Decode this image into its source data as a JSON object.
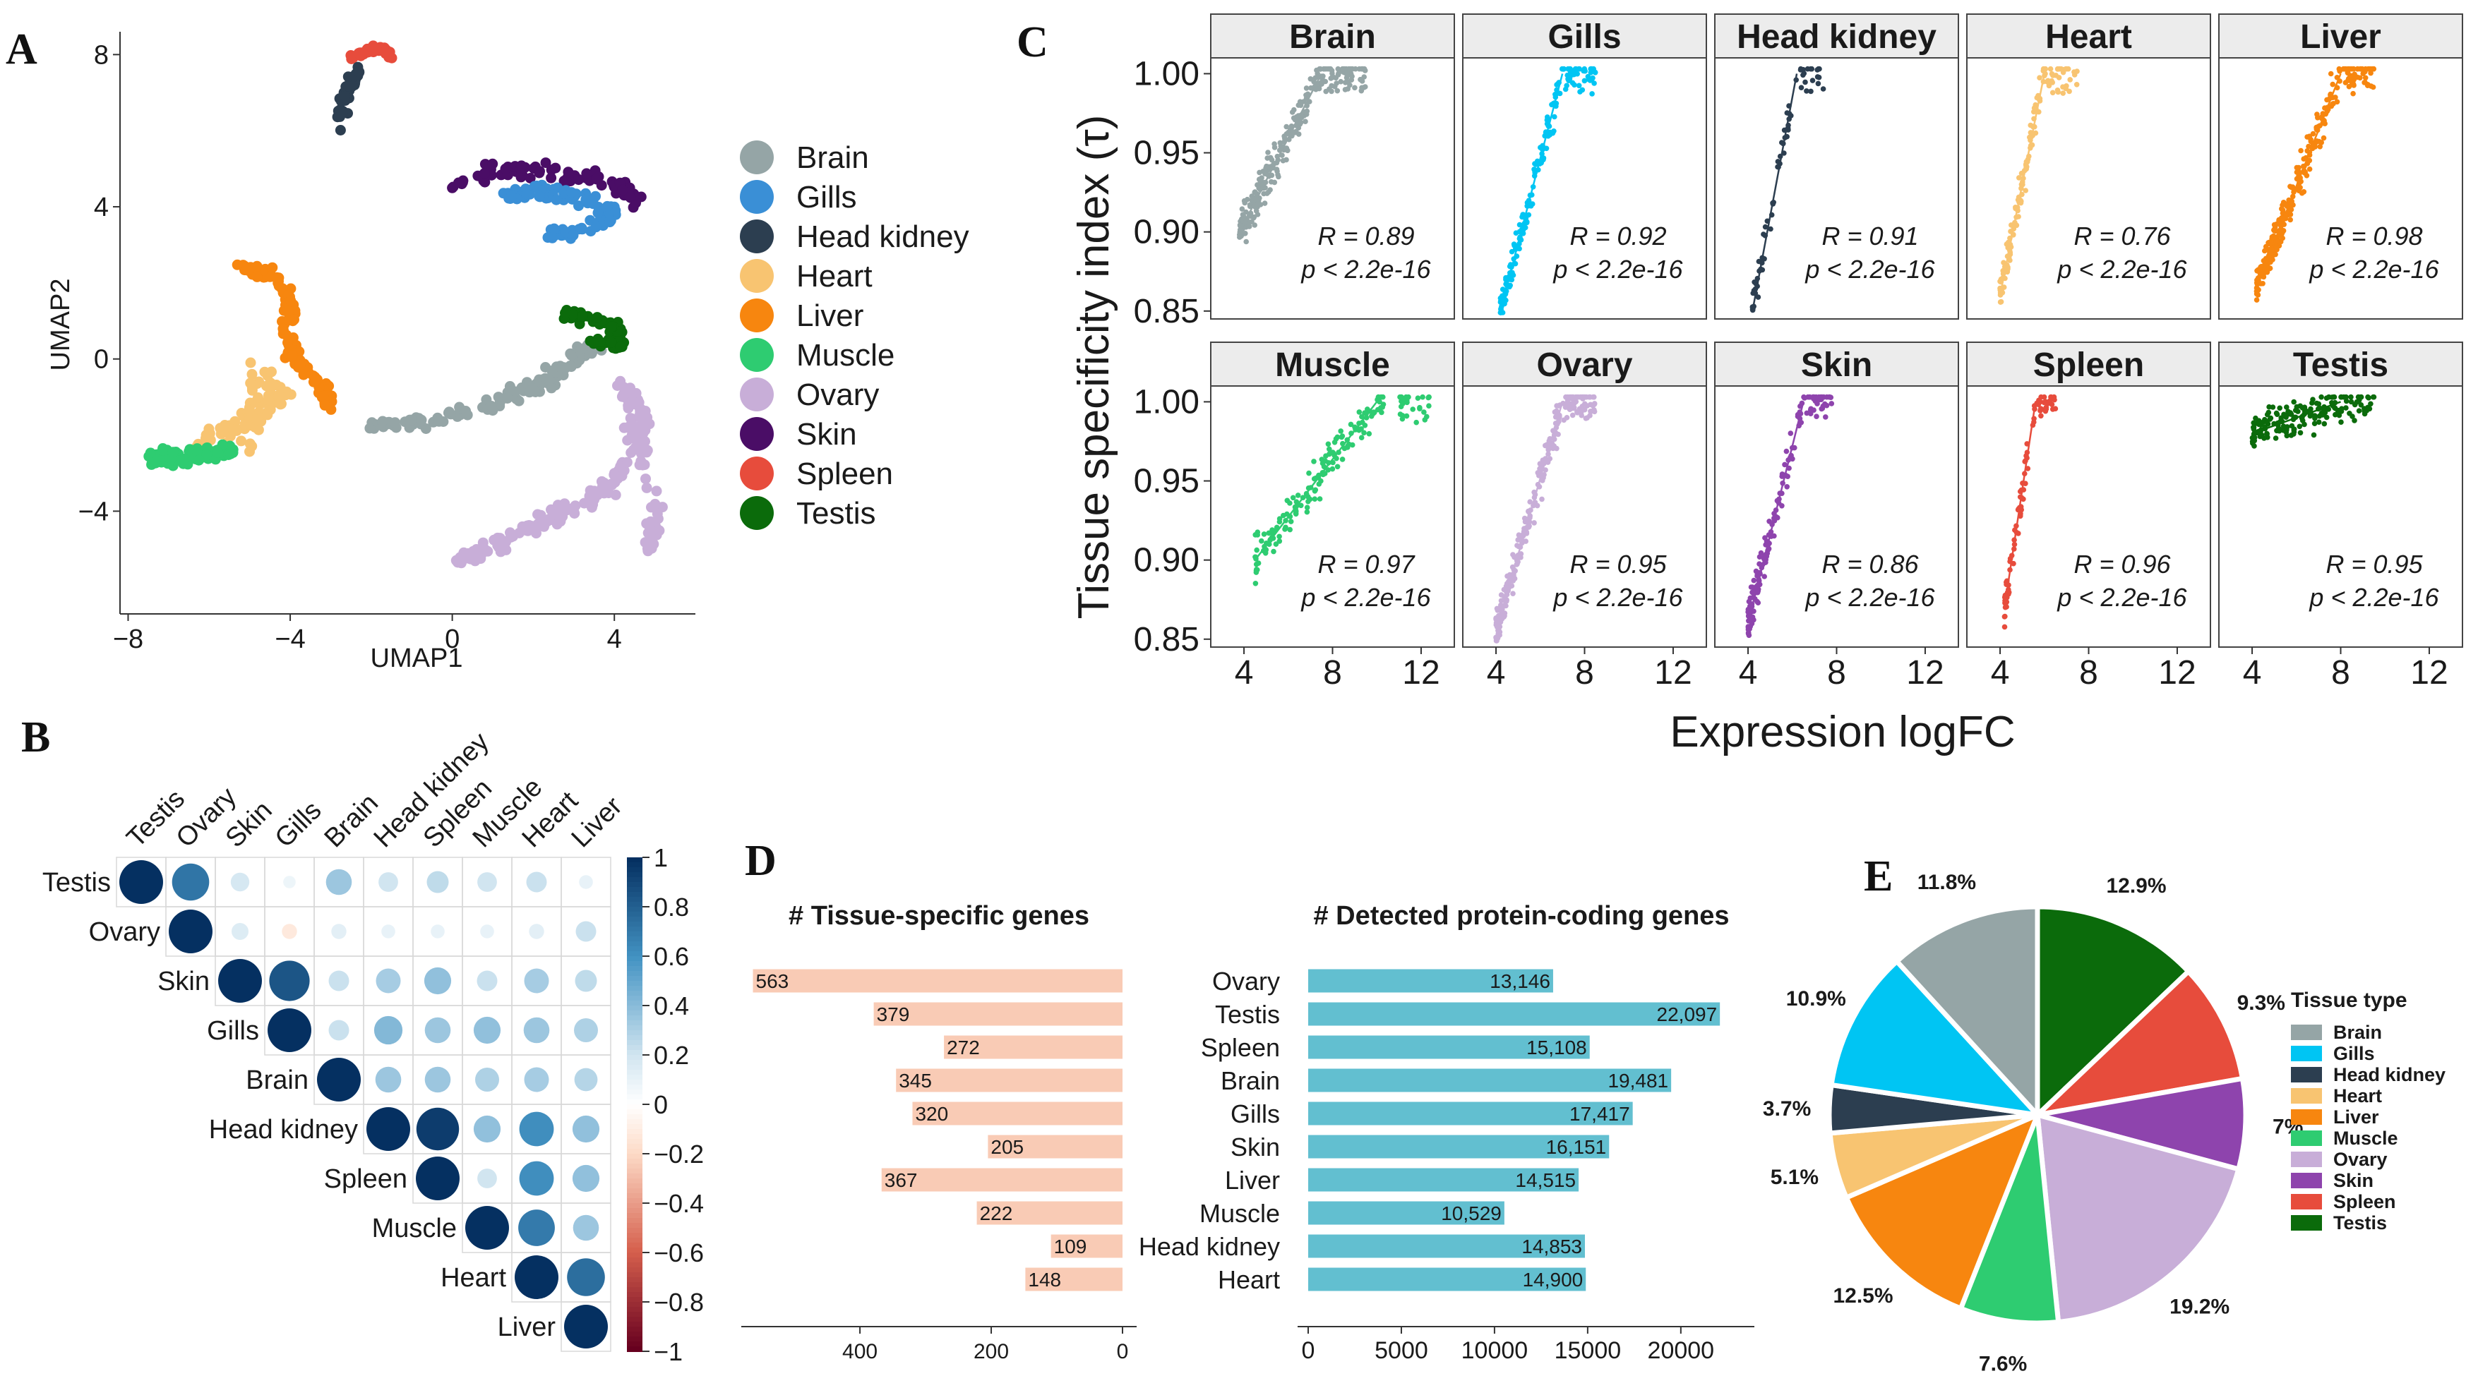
{
  "colors": {
    "Brain": "#95a5a6",
    "Gills": "#00c5f3",
    "Head kidney": "#2c3e50",
    "Heart": "#f8c471",
    "Liver": "#f7860f",
    "Muscle": "#2ecc71",
    "Ovary": "#c8aed8",
    "Skin": "#8e44ad",
    "Spleen": "#e74c3c",
    "Testis": "#0b6b0b",
    "umap_skin": "#4a0d66",
    "umap_gills": "#3a8fd6"
  },
  "panels": {
    "A": "A",
    "B": "B",
    "C": "C",
    "D": "D",
    "E": "E"
  },
  "chart_data": [
    {
      "id": "A",
      "type": "scatter",
      "title": "",
      "xlabel": "UMAP1",
      "ylabel": "UMAP2",
      "xlim": [
        -8.2,
        6
      ],
      "ylim": [
        -6.7,
        8.6
      ],
      "xticks": [
        "−8",
        "−4",
        "0",
        "4"
      ],
      "xtick_values": [
        -8,
        -4,
        0,
        4
      ],
      "yticks": [
        "−4",
        "0",
        "4",
        "8"
      ],
      "ytick_values": [
        -4,
        0,
        4,
        8
      ],
      "legend": [
        "Brain",
        "Gills",
        "Head kidney",
        "Heart",
        "Liver",
        "Muscle",
        "Ovary",
        "Skin",
        "Spleen",
        "Testis"
      ],
      "clusters": [
        {
          "tissue": "Brain",
          "path": [
            [
              -2,
              -1.8
            ],
            [
              -0.5,
              -1.6
            ],
            [
              1,
              -1.2
            ],
            [
              2.2,
              -0.6
            ],
            [
              3,
              0
            ],
            [
              3.6,
              0.3
            ]
          ],
          "spread": 0.3,
          "n": 120
        },
        {
          "tissue": "Liver",
          "path": [
            [
              -5.2,
              2.4
            ],
            [
              -4.3,
              2.2
            ],
            [
              -4,
              1.4
            ],
            [
              -4,
              0.2
            ],
            [
              -3.3,
              -0.7
            ],
            [
              -3,
              -1.2
            ]
          ],
          "spread": 0.28,
          "n": 120
        },
        {
          "tissue": "Heart",
          "path": [
            [
              -6.5,
              -2.4
            ],
            [
              -5.6,
              -1.9
            ],
            [
              -4.8,
              -1.5
            ],
            [
              -4.2,
              -1
            ],
            [
              -4.8,
              -0.4
            ],
            [
              -5,
              -2.4
            ]
          ],
          "spread": 0.35,
          "n": 90
        },
        {
          "tissue": "Muscle",
          "path": [
            [
              -7.5,
              -2.6
            ],
            [
              -6.8,
              -2.6
            ],
            [
              -6,
              -2.5
            ],
            [
              -5.4,
              -2.4
            ]
          ],
          "spread": 0.35,
          "n": 90
        },
        {
          "tissue": "Ovary",
          "path": [
            [
              0.2,
              -5.3
            ],
            [
              1.2,
              -4.9
            ],
            [
              2.2,
              -4.3
            ],
            [
              3.2,
              -3.8
            ],
            [
              4,
              -3.2
            ],
            [
              4.6,
              -2.3
            ],
            [
              4.6,
              -1.3
            ],
            [
              4.2,
              -0.7
            ],
            [
              5,
              -4
            ],
            [
              4.8,
              -5
            ]
          ],
          "spread": 0.32,
          "n": 200
        },
        {
          "tissue": "Testis",
          "path": [
            [
              2.7,
              1.2
            ],
            [
              3.3,
              1.1
            ],
            [
              4,
              0.9
            ],
            [
              4.2,
              0.3
            ],
            [
              3.4,
              0.5
            ]
          ],
          "spread": 0.25,
          "n": 70
        },
        {
          "tissue": "Skin",
          "path": [
            [
              0,
              4.6
            ],
            [
              1,
              4.9
            ],
            [
              2,
              5
            ],
            [
              3,
              4.8
            ],
            [
              4,
              4.6
            ],
            [
              4.6,
              4.2
            ]
          ],
          "spread": 0.3,
          "n": 80
        },
        {
          "tissue": "Gills",
          "path": [
            [
              1.2,
              4.3
            ],
            [
              2.2,
              4.4
            ],
            [
              3.2,
              4.2
            ],
            [
              4,
              3.8
            ],
            [
              3,
              3.3
            ],
            [
              2.4,
              3.4
            ]
          ],
          "spread": 0.3,
          "n": 100
        },
        {
          "tissue": "Spleen",
          "path": [
            [
              -2.5,
              7.9
            ],
            [
              -2.1,
              8.1
            ],
            [
              -1.7,
              8.2
            ],
            [
              -1.5,
              7.9
            ]
          ],
          "spread": 0.12,
          "n": 35
        },
        {
          "tissue": "Head kidney",
          "path": [
            [
              -2.9,
              6.3
            ],
            [
              -2.7,
              6.8
            ],
            [
              -2.5,
              7.3
            ],
            [
              -2.3,
              7.6
            ],
            [
              -2.9,
              5.8
            ]
          ],
          "spread": 0.15,
          "n": 40
        }
      ]
    },
    {
      "id": "B",
      "type": "heatmap",
      "title": "",
      "labels": [
        "Testis",
        "Ovary",
        "Skin",
        "Gills",
        "Brain",
        "Head kidney",
        "Spleen",
        "Muscle",
        "Heart",
        "Liver"
      ],
      "colorbar_ticks": [
        "1",
        "0.8",
        "0.6",
        "0.4",
        "0.2",
        "0",
        "−0.2",
        "−0.4",
        "−0.6",
        "−0.8",
        "−1"
      ],
      "colorbar_values": [
        1,
        0.8,
        0.6,
        0.4,
        0.2,
        0,
        -0.2,
        -0.4,
        -0.6,
        -0.8,
        -1
      ],
      "matrix_upper": [
        [
          1,
          0.72,
          0.18,
          0.08,
          0.35,
          0.2,
          0.25,
          0.2,
          0.22,
          0.1
        ],
        [
          null,
          1,
          0.15,
          -0.12,
          0.12,
          0.1,
          0.1,
          0.1,
          0.12,
          0.22
        ],
        [
          null,
          null,
          1,
          0.85,
          0.22,
          0.32,
          0.38,
          0.22,
          0.32,
          0.25
        ],
        [
          null,
          null,
          null,
          1,
          0.22,
          0.42,
          0.35,
          0.38,
          0.35,
          0.3
        ],
        [
          null,
          null,
          null,
          null,
          1,
          0.35,
          0.35,
          0.3,
          0.32,
          0.28
        ],
        [
          null,
          null,
          null,
          null,
          null,
          1,
          0.95,
          0.38,
          0.62,
          0.38
        ],
        [
          null,
          null,
          null,
          null,
          null,
          null,
          1,
          0.2,
          0.62,
          0.38
        ],
        [
          null,
          null,
          null,
          null,
          null,
          null,
          null,
          1,
          0.7,
          0.35
        ],
        [
          null,
          null,
          null,
          null,
          null,
          null,
          null,
          null,
          1,
          0.75
        ],
        [
          null,
          null,
          null,
          null,
          null,
          null,
          null,
          null,
          null,
          1
        ]
      ]
    },
    {
      "id": "C",
      "type": "scatter",
      "title": "",
      "xlabel": "Expression logFC",
      "ylabel": "Tissue specificity index (τ)",
      "xlim": [
        2.5,
        13.5
      ],
      "ylim": [
        0.845,
        1.01
      ],
      "xticks": [
        "4",
        "8",
        "12"
      ],
      "xtick_values": [
        4,
        8,
        12
      ],
      "yticks": [
        "1.00",
        "0.95",
        "0.90",
        "0.85"
      ],
      "ytick_values": [
        1.0,
        0.95,
        0.9,
        0.85
      ],
      "facets": [
        {
          "tissue": "Brain",
          "r_label": "R = 0.89",
          "p_label": "p < 2.2e-16",
          "x_range": [
            3.8,
            9.5
          ],
          "n": 280,
          "line": [
            [
              3.8,
              0.9
            ],
            [
              7.5,
              1.0
            ]
          ]
        },
        {
          "tissue": "Gills",
          "r_label": "R = 0.92",
          "p_label": "p < 2.2e-16",
          "x_range": [
            4.2,
            8.5
          ],
          "n": 200,
          "line": [
            [
              4.2,
              0.85
            ],
            [
              7,
              1.0
            ]
          ]
        },
        {
          "tissue": "Head kidney",
          "r_label": "R = 0.91",
          "p_label": "p < 2.2e-16",
          "x_range": [
            4.2,
            7.5
          ],
          "n": 70,
          "line": [
            [
              4.2,
              0.85
            ],
            [
              6.2,
              1.0
            ]
          ]
        },
        {
          "tissue": "Heart",
          "r_label": "R = 0.76",
          "p_label": "p < 2.2e-16",
          "x_range": [
            4,
            7.5
          ],
          "n": 150,
          "line": [
            [
              4,
              0.86
            ],
            [
              6,
              1.0
            ]
          ]
        },
        {
          "tissue": "Liver",
          "r_label": "R = 0.98",
          "p_label": "p < 2.2e-16",
          "x_range": [
            4.2,
            9.5
          ],
          "n": 300,
          "line": [
            [
              4.2,
              0.865
            ],
            [
              8,
              1.0
            ]
          ]
        },
        {
          "tissue": "Muscle",
          "r_label": "R = 0.97",
          "p_label": "p < 2.2e-16",
          "x_range": [
            4.5,
            12.5
          ],
          "n": 180,
          "line": [
            [
              4.5,
              0.9
            ],
            [
              10,
              1.0
            ]
          ]
        },
        {
          "tissue": "Ovary",
          "r_label": "R = 0.95",
          "p_label": "p < 2.2e-16",
          "x_range": [
            4,
            8.5
          ],
          "n": 260,
          "line": [
            [
              4,
              0.855
            ],
            [
              7,
              1.0
            ]
          ]
        },
        {
          "tissue": "Skin",
          "r_label": "R = 0.86",
          "p_label": "p < 2.2e-16",
          "x_range": [
            4,
            7.8
          ],
          "n": 170,
          "line": [
            [
              4,
              0.86
            ],
            [
              6.5,
              1.0
            ]
          ]
        },
        {
          "tissue": "Spleen",
          "r_label": "R = 0.96",
          "p_label": "p < 2.2e-16",
          "x_range": [
            4.2,
            6.5
          ],
          "n": 90,
          "line": [
            [
              4.2,
              0.87
            ],
            [
              5.6,
              1.0
            ]
          ]
        },
        {
          "tissue": "Testis",
          "r_label": "R = 0.95",
          "p_label": "p < 2.2e-16",
          "x_range": [
            4,
            9.5
          ],
          "n": 180,
          "line": [
            [
              4,
              0.98
            ],
            [
              8,
              1.0
            ]
          ]
        }
      ]
    },
    {
      "id": "D-left",
      "type": "bar",
      "title": "# Tissue-specific genes",
      "orientation": "horizontal-reversed",
      "categories": [
        "Ovary",
        "Testis",
        "Spleen",
        "Brain",
        "Gills",
        "Skin",
        "Liver",
        "Muscle",
        "Head kidney",
        "Heart"
      ],
      "values": [
        563,
        379,
        272,
        345,
        320,
        205,
        367,
        222,
        109,
        148
      ],
      "xlim": [
        0,
        570
      ],
      "xticks": [
        "400",
        "200",
        "0"
      ],
      "xtick_values": [
        400,
        200,
        0
      ],
      "color": "#f9cbb5"
    },
    {
      "id": "D-right",
      "type": "bar",
      "title": "# Detected protein-coding genes",
      "orientation": "horizontal",
      "categories": [
        "Ovary",
        "Testis",
        "Spleen",
        "Brain",
        "Gills",
        "Skin",
        "Liver",
        "Muscle",
        "Head kidney",
        "Heart"
      ],
      "values": [
        13146,
        22097,
        15108,
        19481,
        17417,
        16151,
        14515,
        10529,
        14853,
        14900
      ],
      "value_labels": [
        "13,146",
        "22,097",
        "15,108",
        "19,481",
        "17,417",
        "16,151",
        "14,515",
        "10,529",
        "14,853",
        "14,900"
      ],
      "xlim": [
        0,
        23000
      ],
      "xticks": [
        "0",
        "5000",
        "10000",
        "15000",
        "20000"
      ],
      "xtick_values": [
        0,
        5000,
        10000,
        15000,
        20000
      ],
      "color": "#62bfd0"
    },
    {
      "id": "E",
      "type": "pie",
      "title": "",
      "legend_title": "Tissue type",
      "legend": [
        "Brain",
        "Gills",
        "Head kidney",
        "Heart",
        "Liver",
        "Muscle",
        "Ovary",
        "Skin",
        "Spleen",
        "Testis"
      ],
      "slices": [
        {
          "tissue": "Testis",
          "label": "12.9%",
          "value": 12.9
        },
        {
          "tissue": "Spleen",
          "label": "9.3%",
          "value": 9.3
        },
        {
          "tissue": "Skin",
          "label": "7%",
          "value": 7.0
        },
        {
          "tissue": "Ovary",
          "label": "19.2%",
          "value": 19.2
        },
        {
          "tissue": "Muscle",
          "label": "7.6%",
          "value": 7.6
        },
        {
          "tissue": "Liver",
          "label": "12.5%",
          "value": 12.5
        },
        {
          "tissue": "Heart",
          "label": "5.1%",
          "value": 5.1
        },
        {
          "tissue": "Head kidney",
          "label": "3.7%",
          "value": 3.7
        },
        {
          "tissue": "Gills",
          "label": "10.9%",
          "value": 10.9
        },
        {
          "tissue": "Brain",
          "label": "11.8%",
          "value": 11.8
        }
      ]
    }
  ]
}
